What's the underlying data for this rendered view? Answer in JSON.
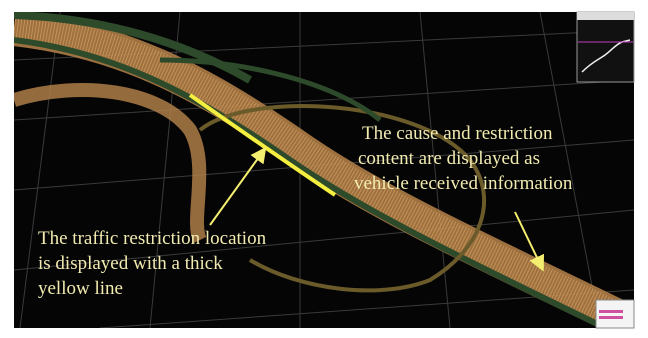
{
  "annotations": [
    {
      "lines": [
        "The cause and restriction",
        "content are displayed as",
        "vehicle received information"
      ]
    },
    {
      "lines": [
        "The traffic restriction location",
        "is displayed with a thick",
        "yellow line"
      ]
    }
  ]
}
